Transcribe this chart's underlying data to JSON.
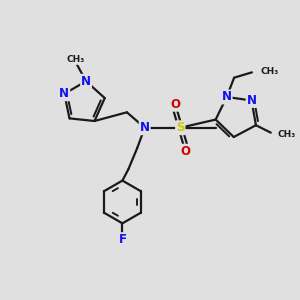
{
  "background_color": "#e0e0e0",
  "bond_color": "#1a1a1a",
  "bond_width": 1.6,
  "atom_colors": {
    "N": "#1010ee",
    "O": "#cc0000",
    "S": "#cccc00",
    "F": "#1010ee",
    "C": "#1a1a1a"
  },
  "font_size_atom": 8.5,
  "font_size_small": 7.0,
  "figsize": [
    3.0,
    3.0
  ],
  "dpi": 100,
  "xlim": [
    0,
    10
  ],
  "ylim": [
    0,
    10
  ]
}
